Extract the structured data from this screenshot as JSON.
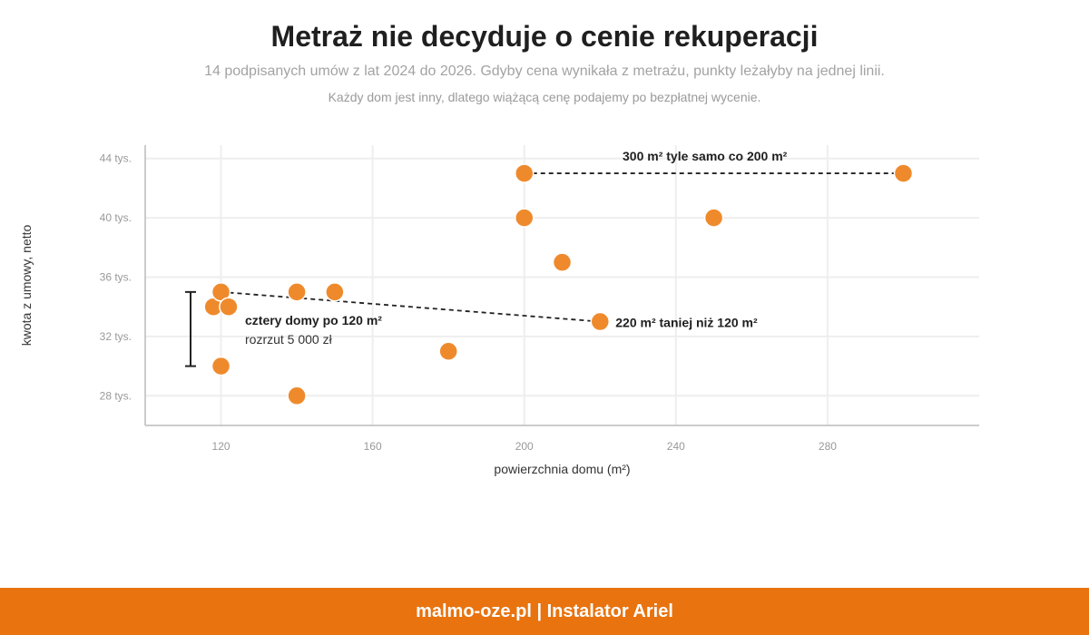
{
  "title": "Metraż nie decyduje o cenie rekuperacji",
  "subtitle": "14 podpisanych umów z lat 2024 do 2026. Gdyby cena wynikała z metrażu, punkty leżałyby na jednej linii.",
  "subtitle2": "Każdy dom jest inny, dlatego wiążącą cenę podajemy po bezpłatnej wycenie.",
  "footer": "malmo-oze.pl | Instalator Ariel",
  "colors": {
    "point": "#ef8a2c",
    "footer_bg": "#e8730f",
    "grid": "#eeeeee",
    "axis": "#bbbbbb"
  },
  "chart_data": {
    "type": "scatter",
    "xlabel": "powierzchnia domu (m²)",
    "ylabel": "kwota z umowy, netto",
    "xlim": [
      100,
      320
    ],
    "ylim": [
      26,
      44.9
    ],
    "x_ticks": [
      120,
      160,
      200,
      240,
      280
    ],
    "x_tick_labels": [
      "120",
      "160",
      "200",
      "240",
      "280"
    ],
    "y_ticks": [
      28,
      32,
      36,
      40,
      44
    ],
    "y_tick_labels": [
      "28 tys.",
      "32 tys.",
      "36 tys.",
      "40 tys.",
      "44 tys."
    ],
    "grid": true,
    "points": [
      {
        "x": 118,
        "y": 34
      },
      {
        "x": 120,
        "y": 35
      },
      {
        "x": 122,
        "y": 34
      },
      {
        "x": 120,
        "y": 30
      },
      {
        "x": 140,
        "y": 35
      },
      {
        "x": 150,
        "y": 35
      },
      {
        "x": 140,
        "y": 28
      },
      {
        "x": 180,
        "y": 31
      },
      {
        "x": 200,
        "y": 43
      },
      {
        "x": 200,
        "y": 40
      },
      {
        "x": 210,
        "y": 37
      },
      {
        "x": 220,
        "y": 33
      },
      {
        "x": 250,
        "y": 40
      },
      {
        "x": 300,
        "y": 43
      }
    ],
    "annotations": {
      "range_120": {
        "label": "cztery domy po 120 m²",
        "sublabel": "rozrzut 5 000 zł",
        "y_from": 30,
        "y_to": 35
      },
      "line_220": {
        "label": "220 m² taniej niż 120 m²",
        "from": {
          "x": 120,
          "y": 35
        },
        "to": {
          "x": 220,
          "y": 33
        }
      },
      "line_300": {
        "label": "300 m² tyle samo co 200 m²",
        "from": {
          "x": 200,
          "y": 43
        },
        "to": {
          "x": 300,
          "y": 43
        }
      }
    }
  }
}
